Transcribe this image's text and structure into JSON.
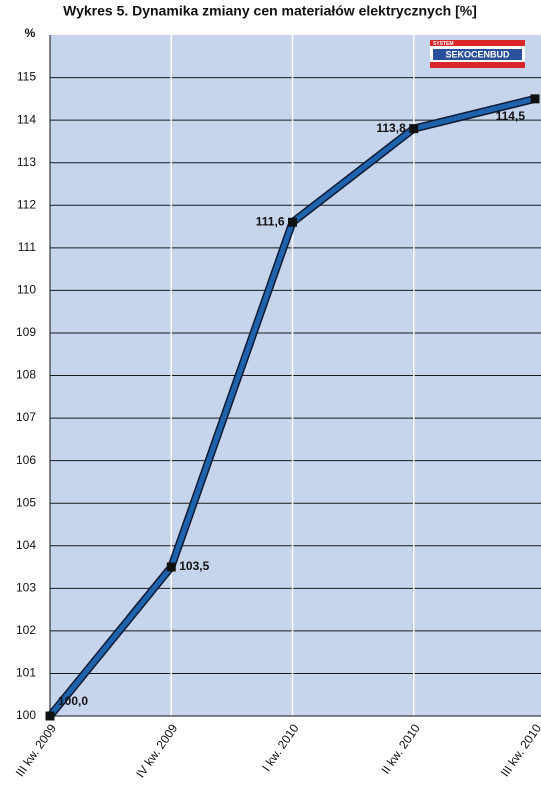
{
  "chart_data": {
    "type": "line",
    "title": "Wykres 5. Dynamika zmiany cen materiałów elektrycznych [%]",
    "y_unit": "%",
    "logo": {
      "top": "SYSTEM",
      "name": "SEKOCENBUD"
    },
    "categories": [
      "III kw. 2009",
      "IV kw. 2009",
      "I kw. 2010",
      "II kw. 2010",
      "III kw. 2010"
    ],
    "series": [
      {
        "color": "#1f63ad",
        "values": [
          100.0,
          103.5,
          111.6,
          113.8,
          114.5
        ],
        "value_labels": [
          "100,0",
          "103,5",
          "111,6",
          "113,8",
          "114,5"
        ]
      }
    ],
    "ylim": [
      100,
      116
    ],
    "yticks": [
      100,
      101,
      102,
      103,
      104,
      105,
      106,
      107,
      108,
      109,
      110,
      111,
      112,
      113,
      114,
      115
    ],
    "grid": true,
    "background": "#c6d4ec"
  }
}
